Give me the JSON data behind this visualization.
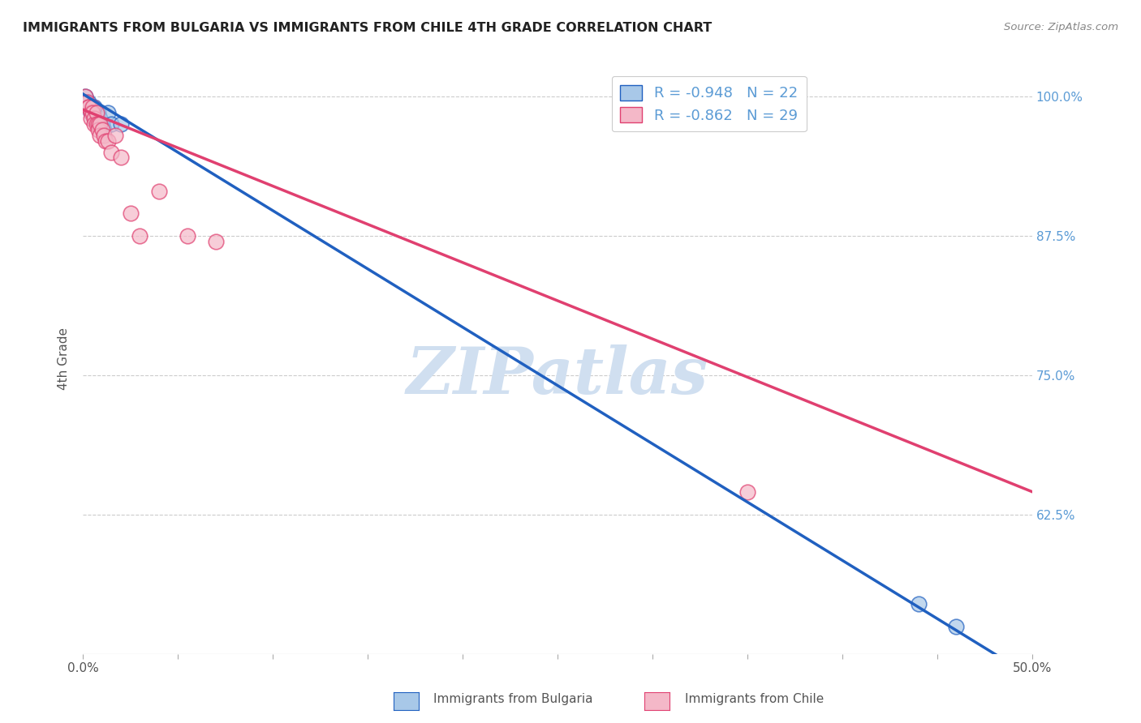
{
  "title": "IMMIGRANTS FROM BULGARIA VS IMMIGRANTS FROM CHILE 4TH GRADE CORRELATION CHART",
  "source": "Source: ZipAtlas.com",
  "ylabel": "4th Grade",
  "xlim": [
    0.0,
    0.5
  ],
  "ylim": [
    0.5,
    1.03
  ],
  "legend_R_bulgaria": "-0.948",
  "legend_N_bulgaria": "22",
  "legend_R_chile": "-0.862",
  "legend_N_chile": "29",
  "color_bulgaria": "#a8c8e8",
  "color_chile": "#f4b8c8",
  "line_color_bulgaria": "#2060c0",
  "line_color_chile": "#e04070",
  "watermark": "ZIPatlas",
  "watermark_color": "#d0dff0",
  "bulgaria_scatter_x": [
    0.001,
    0.002,
    0.003,
    0.003,
    0.004,
    0.004,
    0.005,
    0.005,
    0.006,
    0.006,
    0.007,
    0.007,
    0.008,
    0.008,
    0.009,
    0.01,
    0.011,
    0.013,
    0.015,
    0.02,
    0.44,
    0.46
  ],
  "bulgaria_scatter_y": [
    1.0,
    0.995,
    0.99,
    0.995,
    0.99,
    0.985,
    0.99,
    0.985,
    0.98,
    0.99,
    0.985,
    0.98,
    0.985,
    0.975,
    0.98,
    0.975,
    0.97,
    0.985,
    0.975,
    0.975,
    0.545,
    0.525
  ],
  "chile_scatter_x": [
    0.001,
    0.002,
    0.003,
    0.003,
    0.004,
    0.004,
    0.005,
    0.005,
    0.006,
    0.006,
    0.007,
    0.007,
    0.008,
    0.008,
    0.009,
    0.009,
    0.01,
    0.011,
    0.012,
    0.013,
    0.015,
    0.017,
    0.02,
    0.025,
    0.03,
    0.04,
    0.055,
    0.07,
    0.35
  ],
  "chile_scatter_y": [
    1.0,
    0.995,
    0.99,
    0.99,
    0.985,
    0.98,
    0.99,
    0.985,
    0.98,
    0.975,
    0.985,
    0.975,
    0.975,
    0.97,
    0.975,
    0.965,
    0.97,
    0.965,
    0.96,
    0.96,
    0.95,
    0.965,
    0.945,
    0.895,
    0.875,
    0.915,
    0.875,
    0.87,
    0.645
  ],
  "bg_color": "#ffffff",
  "grid_color": "#cccccc",
  "reg_line_bulgaria": [
    1.002,
    -1.045
  ],
  "reg_line_chile": [
    0.988,
    -0.685
  ]
}
